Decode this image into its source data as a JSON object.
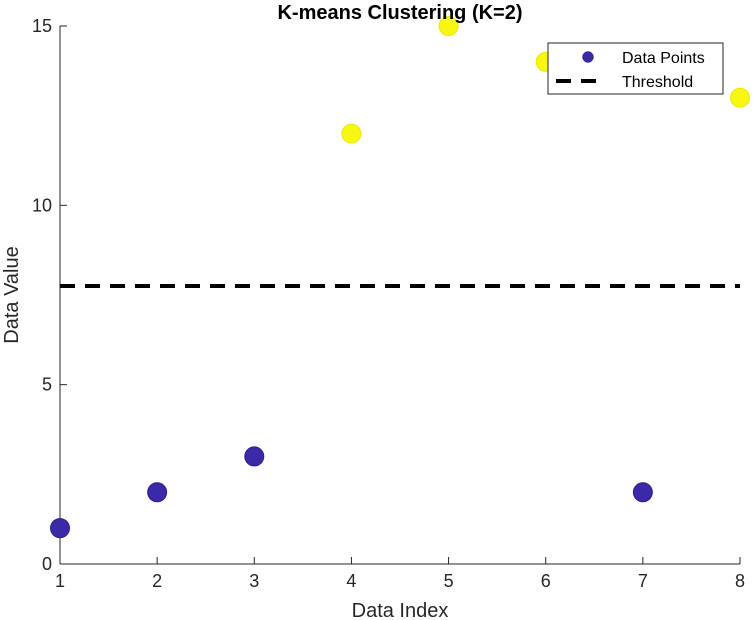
{
  "chart_data": {
    "type": "scatter",
    "title": "K-means Clustering (K=2)",
    "xlabel": "Data Index",
    "ylabel": "Data Value",
    "xlim": [
      1,
      8
    ],
    "ylim": [
      0,
      15
    ],
    "xticks": [
      "1",
      "2",
      "3",
      "4",
      "5",
      "6",
      "7",
      "8"
    ],
    "yticks": [
      "0",
      "5",
      "10",
      "15"
    ],
    "grid": false,
    "legend_location": "top-right",
    "series": [
      {
        "name": "Data Points",
        "x": [
          1,
          2,
          3,
          4,
          5,
          6,
          7,
          8
        ],
        "y": [
          1,
          2,
          3,
          12,
          15,
          14,
          2,
          13
        ],
        "cluster": [
          1,
          1,
          1,
          2,
          2,
          2,
          1,
          2
        ]
      }
    ],
    "threshold": {
      "name": "Threshold",
      "y": 7.75,
      "style": "dashed"
    },
    "cluster_colors": [
      "#3a2aa8",
      "#f7f70f"
    ],
    "line_color": "#000000"
  }
}
